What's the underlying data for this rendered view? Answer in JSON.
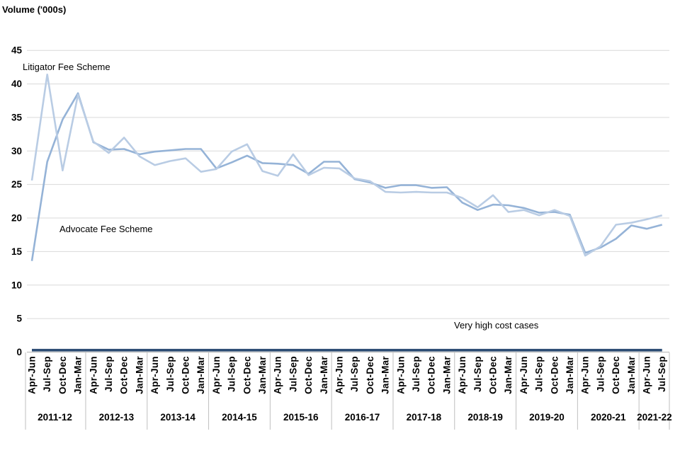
{
  "title": "Volume ('000s)",
  "annotations": {
    "litigator": "Litigator Fee Scheme",
    "advocate": "Advocate Fee Scheme",
    "vhcc": "Very high cost cases"
  },
  "colors": {
    "litigator": "#b9cce4",
    "advocate": "#95b3d7",
    "vhcc": "#2b4b73",
    "gridline": "#d9d9d9",
    "axis": "#bfbfbf",
    "separator": "#bfbfbf",
    "text": "#000000"
  },
  "chart_data": {
    "type": "line",
    "title": "Volume ('000s)",
    "xlabel": "",
    "ylabel": "Volume ('000s)",
    "ylim": [
      0,
      45
    ],
    "yticks": [
      0,
      5,
      10,
      15,
      20,
      25,
      30,
      35,
      40,
      45
    ],
    "grid": true,
    "legend_position": "in-plot annotations",
    "quarter_labels": [
      "Apr-Jun",
      "Jul-Sep",
      "Oct-Dec",
      "Jan-Mar"
    ],
    "year_groups": [
      {
        "label": "2011-12",
        "quarters": 4
      },
      {
        "label": "2012-13",
        "quarters": 4
      },
      {
        "label": "2013-14",
        "quarters": 4
      },
      {
        "label": "2014-15",
        "quarters": 4
      },
      {
        "label": "2015-16",
        "quarters": 4
      },
      {
        "label": "2016-17",
        "quarters": 4
      },
      {
        "label": "2017-18",
        "quarters": 4
      },
      {
        "label": "2018-19",
        "quarters": 4
      },
      {
        "label": "2019-20",
        "quarters": 4
      },
      {
        "label": "2020-21",
        "quarters": 4
      },
      {
        "label": "2021-22",
        "quarters": 2
      }
    ],
    "x": [
      "Apr-Jun",
      "Jul-Sep",
      "Oct-Dec",
      "Jan-Mar",
      "Apr-Jun",
      "Jul-Sep",
      "Oct-Dec",
      "Jan-Mar",
      "Apr-Jun",
      "Jul-Sep",
      "Oct-Dec",
      "Jan-Mar",
      "Apr-Jun",
      "Jul-Sep",
      "Oct-Dec",
      "Jan-Mar",
      "Apr-Jun",
      "Jul-Sep",
      "Oct-Dec",
      "Jan-Mar",
      "Apr-Jun",
      "Jul-Sep",
      "Oct-Dec",
      "Jan-Mar",
      "Apr-Jun",
      "Jul-Sep",
      "Oct-Dec",
      "Jan-Mar",
      "Apr-Jun",
      "Jul-Sep",
      "Oct-Dec",
      "Jan-Mar",
      "Apr-Jun",
      "Jul-Sep",
      "Oct-Dec",
      "Jan-Mar",
      "Apr-Jun",
      "Jul-Sep",
      "Oct-Dec",
      "Jan-Mar",
      "Apr-Jun",
      "Jul-Sep"
    ],
    "series": [
      {
        "name": "Advocate Fee Scheme",
        "color": "#95b3d7",
        "width": 2.6,
        "values": [
          13.6,
          28.4,
          34.7,
          38.6,
          31.3,
          30.2,
          30.3,
          29.5,
          29.9,
          30.1,
          30.3,
          30.3,
          27.4,
          28.3,
          29.3,
          28.2,
          28.1,
          27.9,
          26.6,
          28.4,
          28.4,
          25.8,
          25.3,
          24.5,
          24.9,
          24.9,
          24.5,
          24.6,
          22.3,
          21.2,
          22.0,
          21.9,
          21.5,
          20.8,
          20.9,
          20.5,
          14.8,
          15.6,
          16.9,
          18.9,
          18.4,
          19.0
        ]
      },
      {
        "name": "Litigator Fee Scheme",
        "color": "#b9cce4",
        "width": 2.6,
        "values": [
          25.6,
          41.4,
          27.1,
          38.4,
          31.4,
          29.7,
          32.0,
          29.2,
          27.9,
          28.5,
          28.9,
          26.9,
          27.3,
          29.9,
          31.0,
          27.0,
          26.3,
          29.5,
          26.4,
          27.5,
          27.4,
          25.9,
          25.5,
          23.9,
          23.8,
          23.9,
          23.8,
          23.8,
          23.0,
          21.6,
          23.4,
          20.9,
          21.2,
          20.4,
          21.2,
          20.3,
          14.4,
          15.8,
          19.0,
          19.3,
          19.8,
          20.4
        ]
      },
      {
        "name": "Very high cost cases",
        "color": "#2b4b73",
        "width": 3.6,
        "values": [
          0.3,
          0.3,
          0.3,
          0.3,
          0.3,
          0.3,
          0.3,
          0.3,
          0.3,
          0.3,
          0.3,
          0.3,
          0.3,
          0.3,
          0.3,
          0.3,
          0.3,
          0.3,
          0.3,
          0.3,
          0.3,
          0.3,
          0.3,
          0.3,
          0.3,
          0.3,
          0.3,
          0.3,
          0.3,
          0.3,
          0.3,
          0.3,
          0.3,
          0.3,
          0.3,
          0.3,
          0.3,
          0.3,
          0.3,
          0.3,
          0.3,
          0.3
        ]
      }
    ]
  }
}
